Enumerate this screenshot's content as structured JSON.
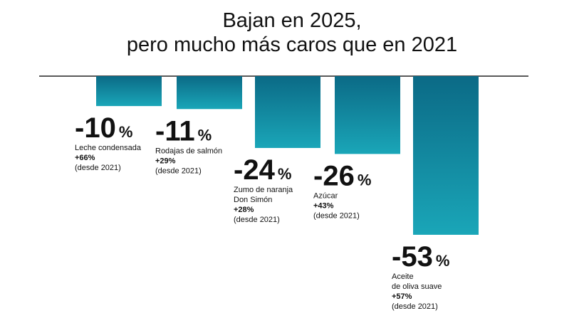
{
  "chart_data": {
    "type": "bar",
    "title": "Bajan en 2025,\npero mucho más caros que en 2021",
    "categories": [
      "Leche condensada",
      "Rodajas de salmón",
      "Zumo de naranja\nDon Simón",
      "Azúcar",
      "Aceite\nde oliva suave"
    ],
    "values": [
      -10,
      -11,
      -24,
      -26,
      -53
    ],
    "value_labels": [
      "-10%",
      "-11%",
      "-24%",
      "-26%",
      "-53%"
    ],
    "increase_since_2021": [
      66,
      29,
      28,
      43,
      57
    ],
    "increase_labels": [
      "+66%",
      "+29%",
      "+28%",
      "+43%",
      "+57%"
    ],
    "increase_note": "(desde 2021)",
    "ylim": [
      -53,
      0
    ],
    "color": [
      "#0b6a86",
      "#1aa6b8"
    ]
  }
}
